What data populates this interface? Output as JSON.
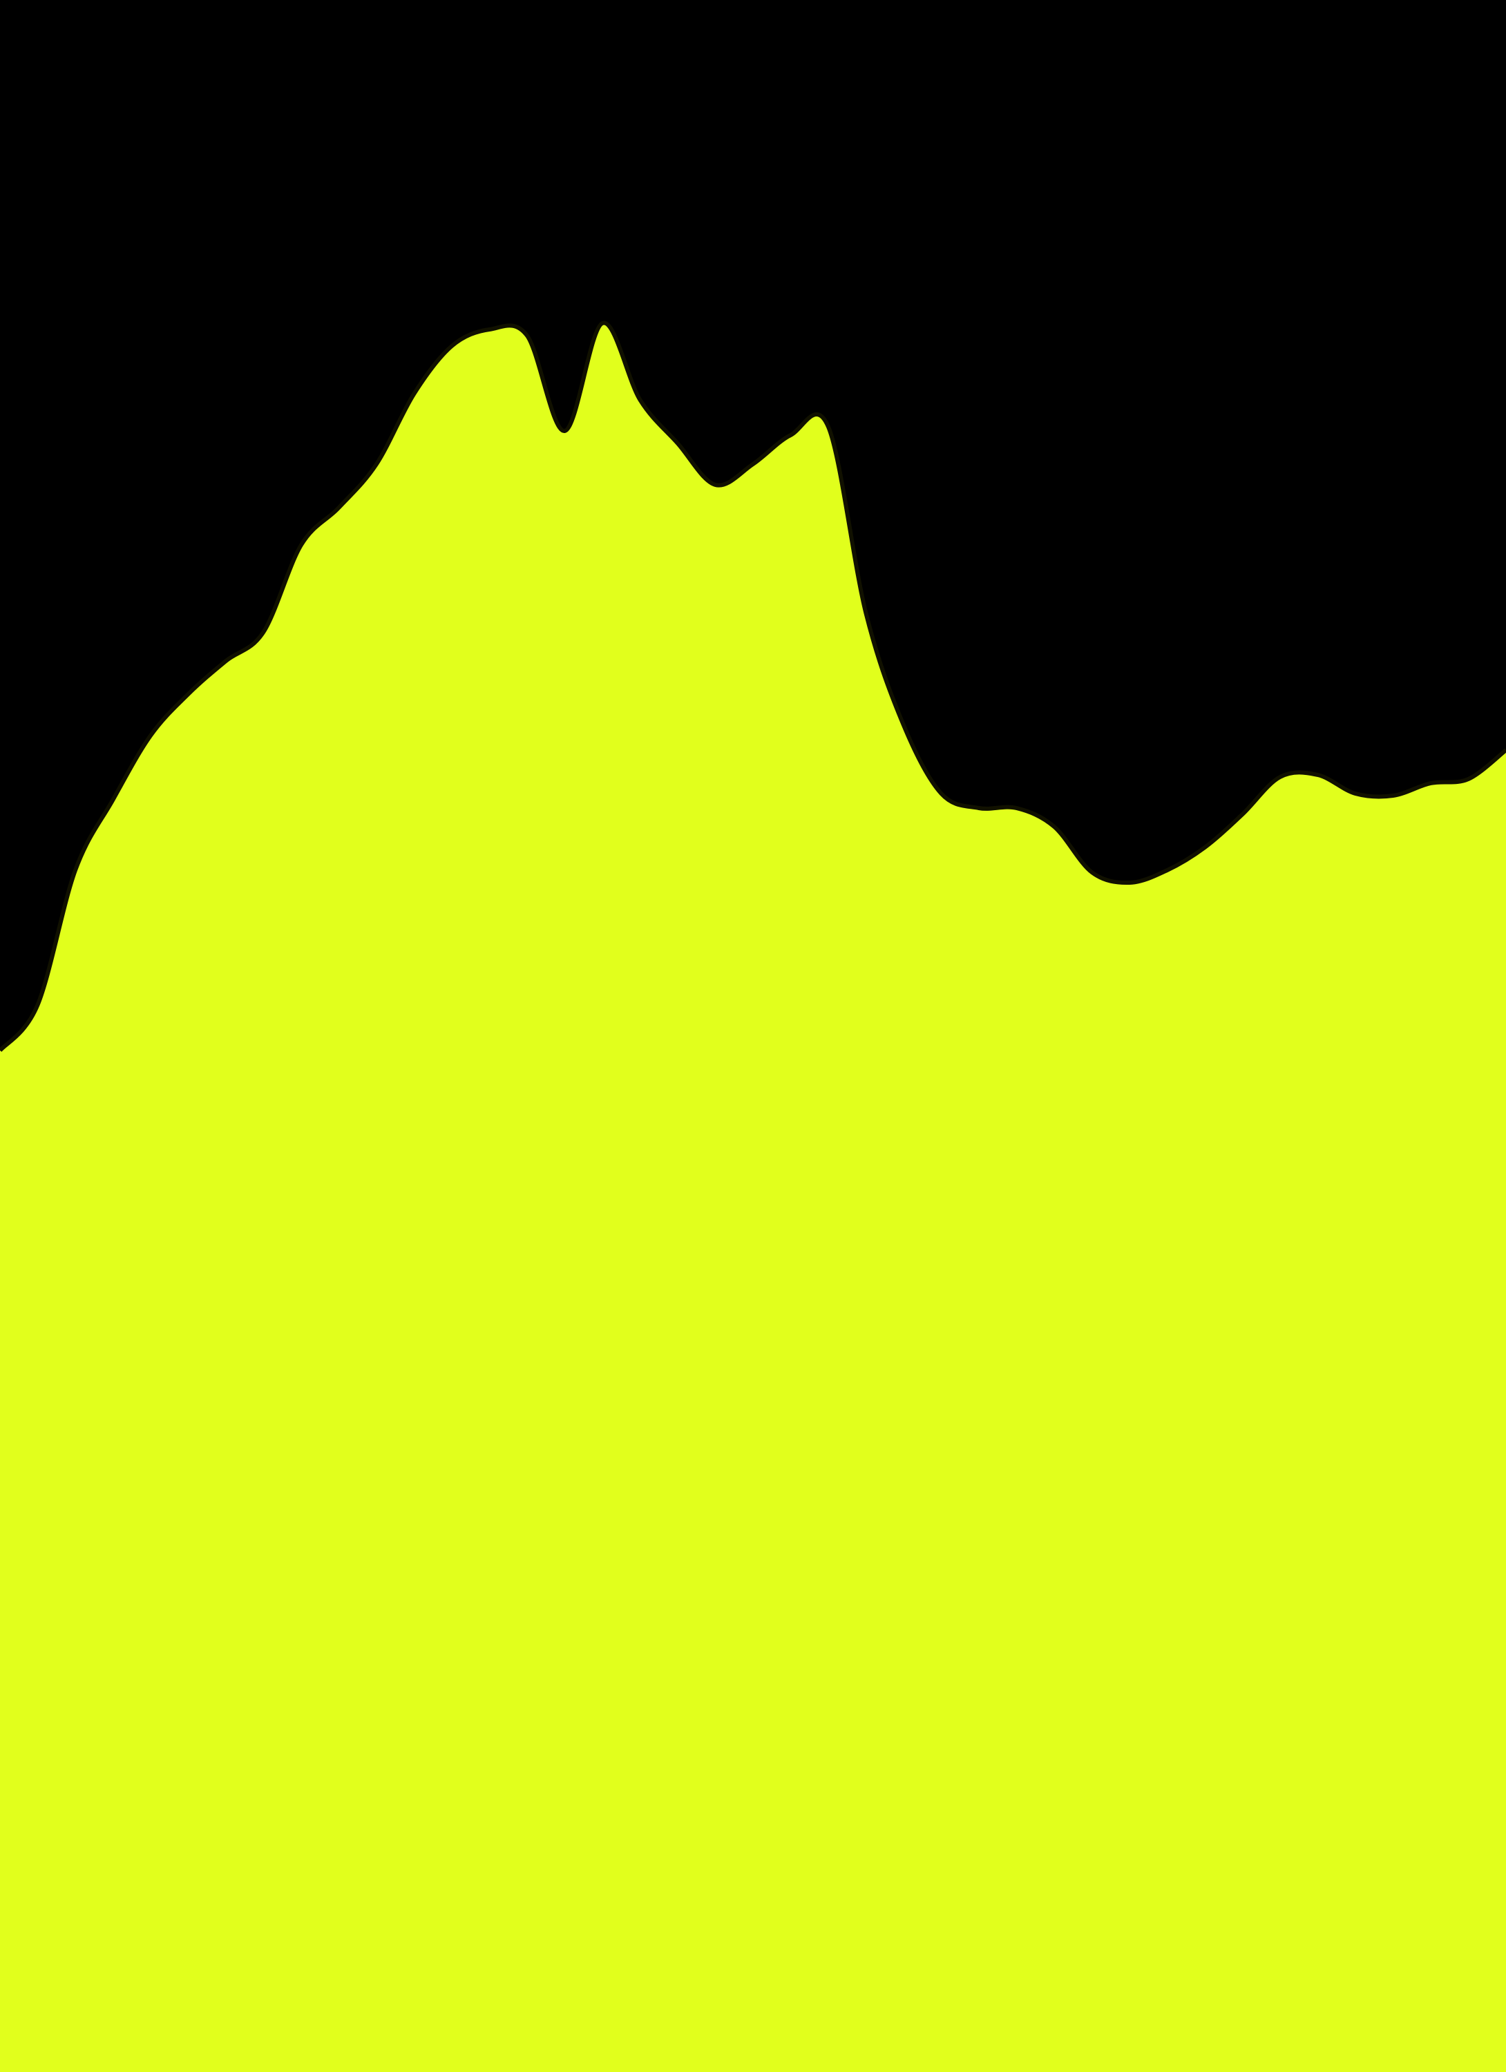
{
  "chart_data": {
    "type": "area",
    "title": "",
    "xlabel": "",
    "ylabel": "",
    "grid": false,
    "legend": "none",
    "xlim": [
      0,
      20
    ],
    "ylim": [
      0,
      1
    ],
    "series": [
      {
        "x": [
          0,
          0.5,
          1,
          1.5,
          2,
          2.5,
          3,
          3.5,
          4,
          4.5,
          5,
          5.5,
          6,
          6.5,
          7,
          7.5,
          8,
          8.5,
          9,
          9.5,
          10,
          10.5,
          11,
          11.5,
          12,
          12.5,
          13,
          13.5,
          14,
          14.5,
          15,
          15.5,
          16,
          16.5,
          17,
          17.5,
          18,
          18.5,
          19,
          19.5,
          20
        ],
        "values": [
          0.493,
          0.515,
          0.58,
          0.614,
          0.645,
          0.665,
          0.681,
          0.695,
          0.737,
          0.755,
          0.776,
          0.81,
          0.833,
          0.841,
          0.838,
          0.792,
          0.844,
          0.807,
          0.786,
          0.766,
          0.776,
          0.79,
          0.794,
          0.704,
          0.65,
          0.617,
          0.61,
          0.61,
          0.601,
          0.579,
          0.574,
          0.58,
          0.591,
          0.607,
          0.625,
          0.626,
          0.617,
          0.616,
          0.622,
          0.624,
          0.638
        ]
      }
    ],
    "colors": {
      "background": "#000000",
      "fill": "#E1FF1C",
      "outline": "#111100"
    }
  }
}
